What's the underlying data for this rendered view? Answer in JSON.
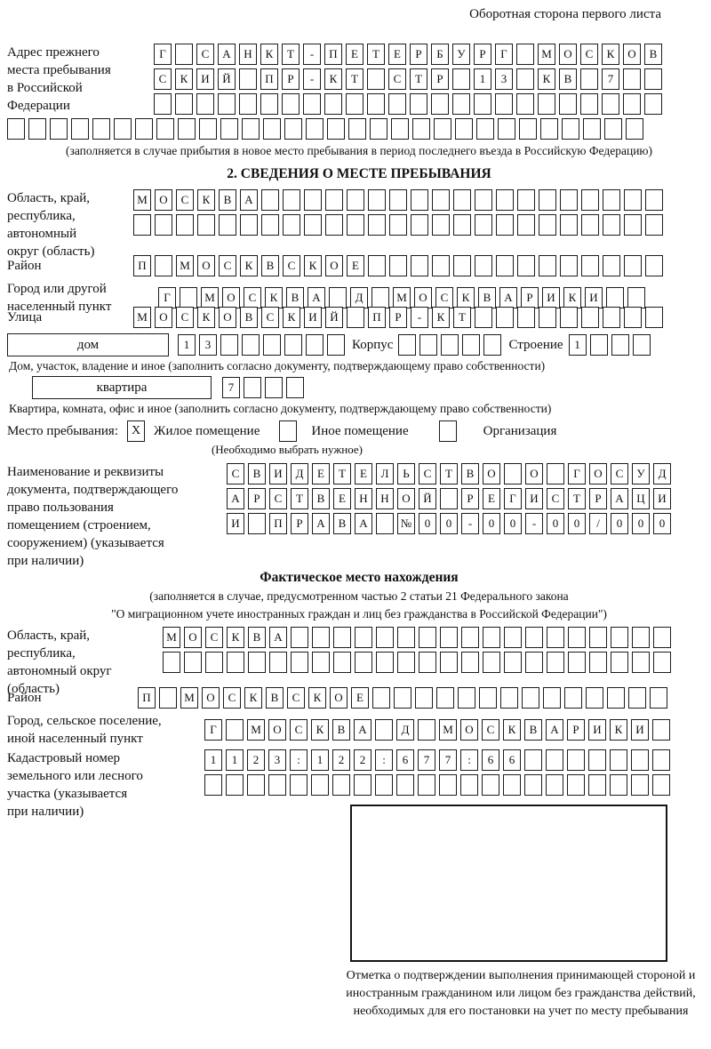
{
  "page": {
    "header_note": "Оборотная сторона первого листа"
  },
  "prev_address": {
    "label_lines": [
      "Адрес прежнего",
      "места пребывания",
      "в Российской",
      "Федерации"
    ],
    "rows": [
      {
        "value": "Г САНКТ-ПЕТЕРБУРГ МОСКОВ",
        "cells": 24
      },
      {
        "value": "СКИЙ ПР-КТ СТР 13 КВ 7",
        "cells": 24
      },
      {
        "value": "",
        "cells": 24
      }
    ],
    "extra_row": {
      "value": "",
      "cells": 30
    },
    "note": "(заполняется в случае прибытия в новое место пребывания в период последнего въезда в Российскую Федерацию)"
  },
  "section2": {
    "title": "2. СВЕДЕНИЯ О МЕСТЕ ПРЕБЫВАНИЯ",
    "region": {
      "label_lines": [
        "Область, край,",
        "республика,",
        "автономный",
        "округ (область)"
      ],
      "rows": [
        {
          "value": "МОСКВА",
          "cells": 25
        },
        {
          "value": "",
          "cells": 25
        }
      ]
    },
    "district": {
      "label": "Район",
      "row": {
        "value": "П МОСКВСКОЕ",
        "cells": 25
      }
    },
    "city": {
      "label_lines": [
        "Город или другой",
        "населенный пункт"
      ],
      "row": {
        "value": "Г МОСКВА Д МОСКВАРИКИ",
        "cells": 23
      }
    },
    "street": {
      "label": "Улица",
      "row": {
        "value": "МОСКОВСКИЙ ПР-КТ",
        "cells": 25
      }
    },
    "house": {
      "box_label": "дом",
      "number": {
        "value": "13",
        "cells": 8
      },
      "korpus_label": "Корпус",
      "korpus": {
        "value": "",
        "cells": 5
      },
      "stroenie_label": "Строение",
      "stroenie": {
        "value": "1",
        "cells": 4
      },
      "note": "Дом, участок, владение и иное (заполнить согласно документу, подтверждающему право собственности)"
    },
    "apartment": {
      "box_label": "квартира",
      "number": {
        "value": "7",
        "cells": 4
      },
      "note": "Квартира, комната, офис и иное (заполнить согласно документу, подтверждающему право собственности)"
    },
    "stay_type": {
      "label": "Место пребывания:",
      "options": [
        {
          "label": "Жилое помещение",
          "checked": "X"
        },
        {
          "label": "Иное помещение",
          "checked": ""
        },
        {
          "label": "Организация",
          "checked": ""
        }
      ],
      "note": "(Необходимо выбрать нужное)"
    },
    "document": {
      "label_lines": [
        "Наименование и реквизиты",
        "документа, подтверждающего",
        "право пользования",
        "помещением (строением,",
        "сооружением) (указывается",
        "при наличии)"
      ],
      "rows": [
        {
          "value": "СВИДЕТЕЛЬСТВО О ГОСУД",
          "cells": 21
        },
        {
          "value": "АРСТВЕННОЙ РЕГИСТРАЦИ",
          "cells": 21
        },
        {
          "value": "И ПРАВА №00-00-00/000",
          "cells": 21
        }
      ]
    }
  },
  "actual_location": {
    "title": "Фактическое место нахождения",
    "note_lines": [
      "(заполняется в случае, предусмотренном частью 2 статьи 21 Федерального закона",
      "\"О миграционном учете иностранных граждан и лиц без гражданства в Российской Федерации\")"
    ],
    "region": {
      "label_lines": [
        "Область, край,",
        "республика,",
        "автономный округ",
        "(область)"
      ],
      "rows": [
        {
          "value": "МОСКВА",
          "cells": 24
        },
        {
          "value": "",
          "cells": 24
        }
      ]
    },
    "district": {
      "label": "Район",
      "row": {
        "value": "П МОСКВСКОЕ",
        "cells": 25
      }
    },
    "city": {
      "label_lines": [
        "Город, сельское поселение,",
        "иной населенный пункт"
      ],
      "row": {
        "value": "Г МОСКВА Д МОСКВАРИКИ",
        "cells": 22
      }
    },
    "cadastral": {
      "label_lines": [
        "Кадастровый номер",
        "земельного или лесного",
        "участка (указывается",
        "при наличии)"
      ],
      "rows": [
        {
          "value": "1123:122:677:66",
          "cells": 22
        },
        {
          "value": "",
          "cells": 22
        }
      ]
    },
    "mark_note": "Отметка о подтверждении выполнения принимающей стороной и иностранным гражданином или лицом без гражданства действий, необходимых для его постановки на учет по месту пребывания"
  }
}
